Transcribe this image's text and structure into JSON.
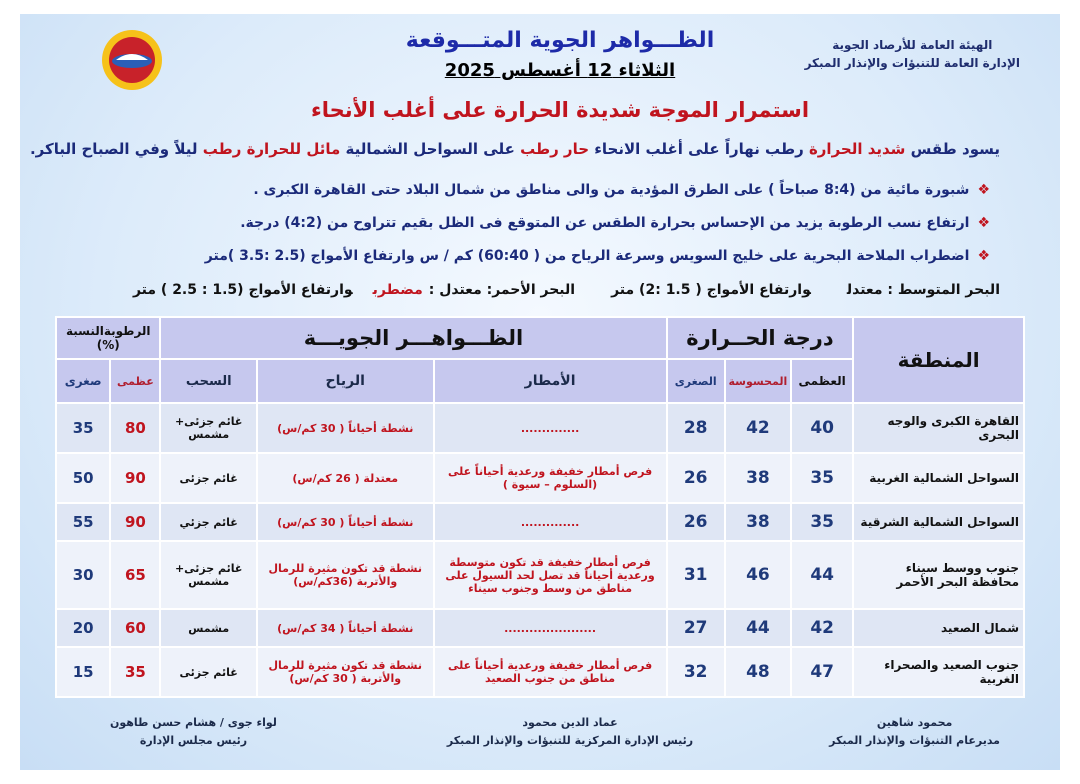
{
  "header": {
    "org": [
      "الهيئة العامة للأرصاد الجوية",
      "الإدارة العامة للتنبؤات والإنذار المبكر"
    ],
    "title": "الظـــواهر الجوية المتـــوقعة",
    "date": "الثلاثاء 12 أغسطس 2025"
  },
  "headline": "استمرار الموجة شديدة الحرارة على أغلب الأنحاء",
  "summary": [
    "يسود طقس ",
    "شديد الحرارة",
    " رطب نهاراً على أغلب الانحاء ",
    "حار رطب",
    " على السواحل الشمالية  ",
    "مائل للحرارة رطب",
    " ليلاً وفي الصباح الباكر."
  ],
  "bullets": [
    "شبورة مائية من (8:4 صباحاً ) على الطرق المؤدية من والى مناطق من شمال البلاد حتى القاهرة الكبرى .",
    "ارتفاع نسب الرطوبة يزيد من الإحساس بحرارة الطقس عن المتوقع فى الظل بقيم تتراوح من (4:2) درجة.",
    "اضطراب الملاحة البحرية على خليج السويس وسرعة الرياح من ( 60:40) كم / س وارتفاع الأمواج (2.5 :3.5 )متر"
  ],
  "seas": [
    "البحر المتوسط : معتدل",
    "وارتفاع الأمواج ( 1.5 :2)  متر",
    "البحر الأحمر: معتدل :",
    "مضطرب",
    "وارتفاع الأمواج (1.5 : 2.5 ) متر"
  ],
  "table": {
    "headers": {
      "region": "المنطقة",
      "temperature": "درجة الحــرارة",
      "max": "العظمى",
      "feels": "المحسوسة",
      "min": "الصغرى",
      "phenomena": "الظـــواهـــر الجويـــة",
      "rain": "الأمطار",
      "wind": "الرياح",
      "clouds": "السحب",
      "humidity": "الرطوبةالنسبة (%)",
      "humidity_max": "عظمى",
      "humidity_min": "صغرى"
    },
    "rows": [
      {
        "region": "القاهرة الكبرى والوجه البحرى",
        "max": 40,
        "feels": 42,
        "min": 28,
        "rain": "..............",
        "wind": "نشطة أحياناً ( 30 كم/س)",
        "clouds": "غائم جزئى+ مشمس",
        "humidity_max": 80,
        "humidity_min": 35
      },
      {
        "region": "السواحل الشمالية الغربية",
        "max": 35,
        "feels": 38,
        "min": 26,
        "rain": "فرص أمطار خفيفة ورعدية أحياناً على (السلوم – سيوة )",
        "wind": "معتدلة ( 26 كم/س)",
        "clouds": "غائم جزئى",
        "humidity_max": 90,
        "humidity_min": 50
      },
      {
        "region": "السواحل الشمالية الشرقية",
        "max": 35,
        "feels": 38,
        "min": 26,
        "rain": "..............",
        "wind": "نشطة أحياناً ( 30 كم/س)",
        "clouds": "غائم جزئي",
        "humidity_max": 90,
        "humidity_min": 55
      },
      {
        "region": "جنوب ووسط سيناء محافظة البحر الأحمر",
        "max": 44,
        "feels": 46,
        "min": 31,
        "rain": "فرص أمطار خفيفة قد تكون  متوسطة ورعدية أحياناً قد تصل لحد السيول على مناطق من وسط وجنوب سيناء",
        "wind": "نشطة قد تكون مثيرة للرمال والأتربة (36كم/س)",
        "clouds": "غائم جزئى+ مشمس",
        "humidity_max": 65,
        "humidity_min": 30
      },
      {
        "region": "شمال الصعيد",
        "max": 42,
        "feels": 44,
        "min": 27,
        "rain": "......................",
        "wind": "نشطة أحياناً ( 34 كم/س)",
        "clouds": "مشمس",
        "humidity_max": 60,
        "humidity_min": 20
      },
      {
        "region": "جنوب الصعيد والصحراء الغربية",
        "max": 47,
        "feels": 48,
        "min": 32,
        "rain": "فرص أمطار خفيفة ورعدية أحياناً على مناطق من  جنوب الصعيد",
        "wind": "نشطة قد تكون مثيرة للرمال والأتربة ( 30 كم/س)",
        "clouds": "غائم جزئى",
        "humidity_max": 35,
        "humidity_min": 15
      }
    ]
  },
  "signatures": [
    {
      "name": "محمود شاهين",
      "title": "مديرعام التنبؤات والإنذار المبكر"
    },
    {
      "name": "عماد الدين محمود",
      "title": "رئيس الإدارة المركزية للتنبؤات والإنذار المبكر"
    },
    {
      "name": "لواء جوى / هشام حسن طاهون",
      "title": "رئيس مجلس الإدارة"
    }
  ]
}
